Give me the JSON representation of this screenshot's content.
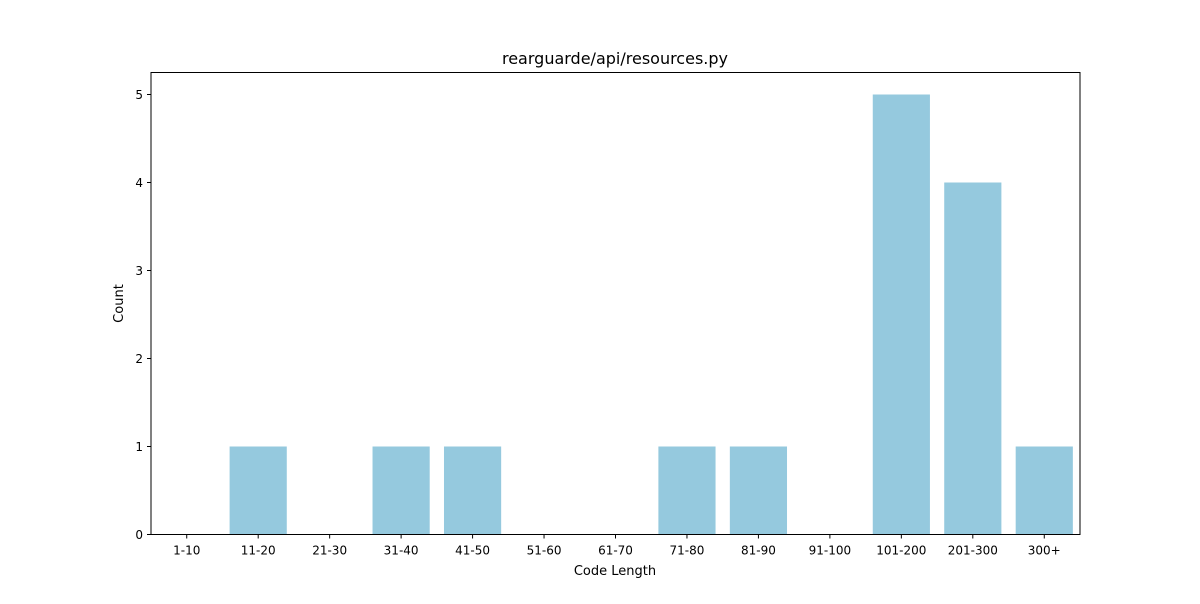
{
  "chart_data": {
    "type": "bar",
    "title": "rearguarde/api/resources.py",
    "xlabel": "Code Length",
    "ylabel": "Count",
    "categories": [
      "1-10",
      "11-20",
      "21-30",
      "31-40",
      "41-50",
      "51-60",
      "61-70",
      "71-80",
      "81-90",
      "91-100",
      "101-200",
      "201-300",
      "300+"
    ],
    "values": [
      0,
      1,
      0,
      1,
      1,
      0,
      0,
      1,
      1,
      0,
      5,
      4,
      1
    ],
    "ylim": [
      0,
      5.25
    ],
    "yticks": [
      0,
      1,
      2,
      3,
      4,
      5
    ],
    "grid": false,
    "legend": "none",
    "bar_color": "#95c9de"
  }
}
